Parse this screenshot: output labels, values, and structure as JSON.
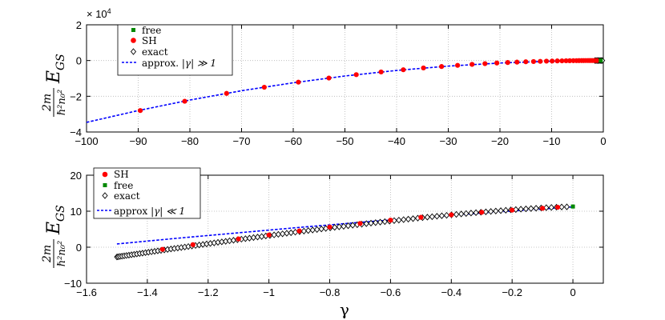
{
  "chart_data": [
    {
      "type": "scatter",
      "ylabel": {
        "frac_num": "2m",
        "frac_den": "ℏ²n₀²",
        "E": "E",
        "sub": "GS"
      },
      "xlim": [
        -100,
        0
      ],
      "ylim": [
        -40000,
        20000
      ],
      "exponent_label": "× 10",
      "exponent_power": "4",
      "x_ticks": [
        -100,
        -90,
        -80,
        -70,
        -60,
        -50,
        -40,
        -30,
        -20,
        -10,
        0
      ],
      "y_ticks": [
        -4,
        -2,
        0,
        2
      ],
      "grid": true,
      "legend_position": "top-left",
      "legend": [
        {
          "key": "free",
          "label": "free"
        },
        {
          "key": "SH",
          "label": "SH"
        },
        {
          "key": "exact",
          "label": "exact"
        },
        {
          "key": "approx",
          "label": "approx. ",
          "math": "|γ| ≫ 1"
        }
      ],
      "series": [
        {
          "name": "SH",
          "color": "#ff0000",
          "marker": "circle",
          "x": [
            -89.6,
            -81.0,
            -72.9,
            -65.6,
            -59.0,
            -53.1,
            -47.8,
            -43.0,
            -38.7,
            -34.8,
            -31.3,
            -28.2,
            -25.4,
            -22.9,
            -20.6,
            -18.5,
            -16.7,
            -15.0,
            -13.5,
            -12.2,
            -11.0,
            -9.9,
            -8.9,
            -8.0,
            -7.2,
            -6.5,
            -5.8,
            -5.2,
            -4.7,
            -4.2,
            -3.8,
            -3.4,
            -3.0,
            -2.7,
            -2.4,
            -2.1,
            -1.8,
            -1.5,
            -1.2
          ],
          "y": [
            -28000,
            -22800,
            -18400,
            -14950,
            -12100,
            -9800,
            -7900,
            -6400,
            -5150,
            -4150,
            -3350,
            -2700,
            -2150,
            -1740,
            -1380,
            -1100,
            -880,
            -700,
            -560,
            -450,
            -350,
            -280,
            -220,
            -170,
            -130,
            -100,
            -80,
            -60,
            -45,
            -35,
            -25,
            -18,
            -12,
            -8,
            -5,
            -2,
            0,
            0,
            0
          ]
        },
        {
          "name": "free",
          "color": "#008800",
          "marker": "square",
          "x": [
            -0.5
          ],
          "y": [
            10
          ]
        },
        {
          "name": "exact",
          "color": "#000000",
          "marker": "diamond",
          "x": [
            -1.6,
            -1.4,
            -1.2,
            -1.0,
            -0.8,
            -0.6,
            -0.4,
            -0.2
          ],
          "y": [
            0,
            0,
            0,
            0,
            0,
            0,
            0,
            0
          ]
        },
        {
          "name": "approx",
          "color": "#0000ff",
          "style": "dashed",
          "x": [
            -100,
            -90,
            -80,
            -70,
            -60,
            -50,
            -40,
            -30,
            -20,
            -10,
            -5,
            -1
          ],
          "y": [
            -34600,
            -28000,
            -22100,
            -16900,
            -12450,
            -8650,
            -5540,
            -3120,
            -1390,
            -350,
            -90,
            -5
          ]
        }
      ]
    },
    {
      "type": "scatter",
      "xlabel": "γ",
      "ylabel": {
        "frac_num": "2m",
        "frac_den": "ℏ²n₀²",
        "E": "E",
        "sub": "GS"
      },
      "xlim": [
        -1.6,
        0.1
      ],
      "ylim": [
        -10,
        20
      ],
      "x_ticks": [
        -1.6,
        -1.4,
        -1.2,
        -1,
        -0.8,
        -0.6,
        -0.4,
        -0.2,
        0
      ],
      "y_ticks": [
        -10,
        0,
        10,
        20
      ],
      "grid": true,
      "legend_position": "top-left",
      "legend": [
        {
          "key": "SH",
          "label": "SH"
        },
        {
          "key": "free",
          "label": "free"
        },
        {
          "key": "exact",
          "label": "exact"
        },
        {
          "key": "approx",
          "label": "approx ",
          "math": "|γ| ≪ 1"
        }
      ],
      "series": [
        {
          "name": "SH",
          "color": "#ff0000",
          "marker": "circle",
          "x": [
            -1.35,
            -1.25,
            -1.1,
            -1.0,
            -0.9,
            -0.8,
            -0.7,
            -0.6,
            -0.5,
            -0.4,
            -0.3,
            -0.2,
            -0.1,
            -0.05
          ],
          "y": [
            -0.6,
            0.7,
            2.3,
            3.4,
            4.5,
            5.6,
            6.6,
            7.5,
            8.3,
            9.0,
            9.7,
            10.3,
            10.8,
            11.1
          ]
        },
        {
          "name": "free",
          "color": "#008800",
          "marker": "square",
          "x": [
            0.0
          ],
          "y": [
            11.3
          ]
        },
        {
          "name": "exact",
          "color": "#000000",
          "marker": "diamond",
          "x_range": [
            -1.5,
            -0.02
          ],
          "endpoint_y": [
            -2.7,
            11.2
          ]
        },
        {
          "name": "approx",
          "color": "#0000ff",
          "style": "dashed",
          "x": [
            -1.5,
            -1.3,
            -1.1,
            -0.9,
            -0.7,
            -0.5,
            -0.3,
            -0.1,
            0.0
          ],
          "y": [
            0.9,
            2.5,
            4.0,
            5.5,
            6.9,
            8.2,
            9.5,
            10.6,
            11.2
          ]
        }
      ]
    }
  ]
}
